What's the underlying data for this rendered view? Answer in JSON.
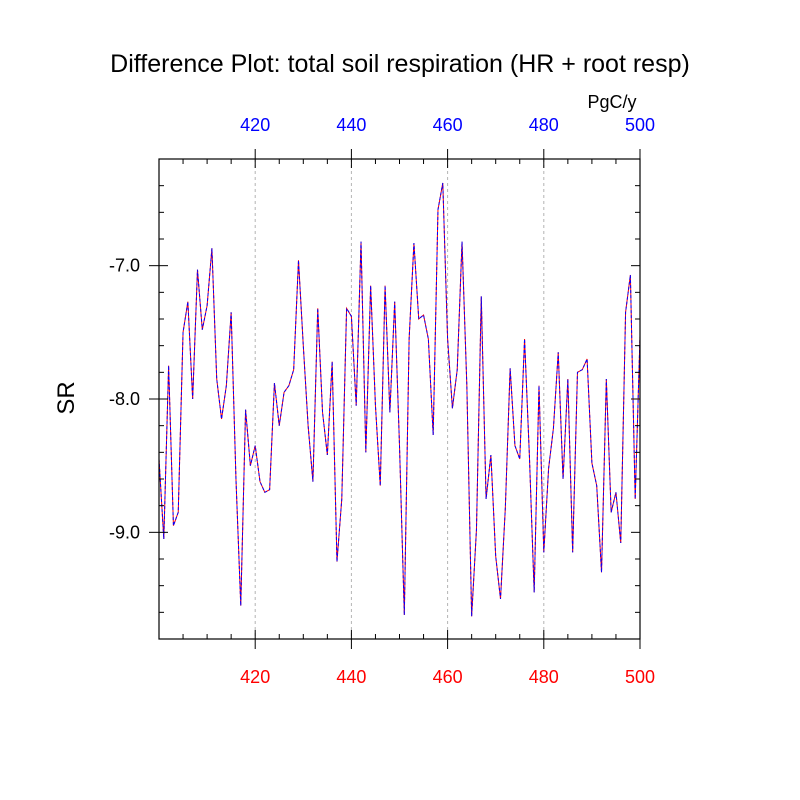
{
  "chart_data": {
    "type": "line",
    "title": "Difference Plot: total soil respiration (HR + root resp)",
    "units": "PgC/y",
    "ylabel": "SR",
    "xlim": [
      400,
      500
    ],
    "ylim": [
      -9.8,
      -6.2
    ],
    "grid": "vertical dashed at major x ticks",
    "x_ticks_bottom": [
      420,
      440,
      460,
      480,
      500
    ],
    "x_ticks_top": [
      420,
      440,
      460,
      480,
      500
    ],
    "y_ticks": [
      -9.0,
      -8.0,
      -7.0
    ],
    "y_tick_labels": [
      "-9.0",
      "-8.0",
      "-7.0"
    ],
    "colors": {
      "bottom_axis": "#ff0000",
      "top_axis": "#0000ff",
      "series_solid": "#ff0000",
      "series_dashed": "#0000ff"
    },
    "series": [
      {
        "x": [
          400,
          401,
          402,
          403,
          404,
          405,
          406,
          407,
          408,
          409,
          410,
          411,
          412,
          413,
          414,
          415,
          416,
          417,
          418,
          419,
          420,
          421,
          422,
          423,
          424,
          425,
          426,
          427,
          428,
          429,
          430,
          431,
          432,
          433,
          434,
          435,
          436,
          437,
          438,
          439,
          440,
          441,
          442,
          443,
          444,
          445,
          446,
          447,
          448,
          449,
          450,
          451,
          452,
          453,
          454,
          455,
          456,
          457,
          458,
          459,
          460,
          461,
          462,
          463,
          464,
          465,
          466,
          467,
          468,
          469,
          470,
          471,
          472,
          473,
          474,
          475,
          476,
          477,
          478,
          479,
          480,
          481,
          482,
          483,
          484,
          485,
          486,
          487,
          488,
          489,
          490,
          491,
          492,
          493,
          494,
          495,
          496,
          497,
          498,
          499,
          500
        ],
        "values": [
          -8.45,
          -9.05,
          -7.75,
          -8.95,
          -8.85,
          -7.5,
          -7.27,
          -8.0,
          -7.03,
          -7.48,
          -7.3,
          -6.87,
          -7.85,
          -8.15,
          -7.9,
          -7.35,
          -8.6,
          -9.55,
          -8.08,
          -8.5,
          -8.35,
          -8.62,
          -8.7,
          -8.68,
          -7.88,
          -8.2,
          -7.95,
          -7.9,
          -7.78,
          -6.96,
          -7.6,
          -8.2,
          -8.62,
          -7.32,
          -8.1,
          -8.42,
          -7.72,
          -9.22,
          -8.75,
          -7.32,
          -7.38,
          -8.05,
          -6.82,
          -8.4,
          -7.15,
          -8.05,
          -8.65,
          -7.15,
          -8.1,
          -7.27,
          -8.35,
          -9.62,
          -7.55,
          -6.83,
          -7.4,
          -7.37,
          -7.55,
          -8.27,
          -6.58,
          -6.38,
          -7.55,
          -8.07,
          -7.78,
          -6.82,
          -7.9,
          -9.63,
          -8.98,
          -7.23,
          -8.75,
          -8.42,
          -9.18,
          -9.5,
          -8.82,
          -7.77,
          -8.35,
          -8.45,
          -7.55,
          -8.42,
          -9.45,
          -7.9,
          -9.15,
          -8.52,
          -8.22,
          -7.65,
          -8.6,
          -7.85,
          -9.15,
          -7.8,
          -7.78,
          -7.7,
          -8.48,
          -8.65,
          -9.3,
          -7.85,
          -8.85,
          -8.7,
          -9.08,
          -7.35,
          -7.07,
          -8.75,
          -7.53
        ]
      }
    ]
  }
}
